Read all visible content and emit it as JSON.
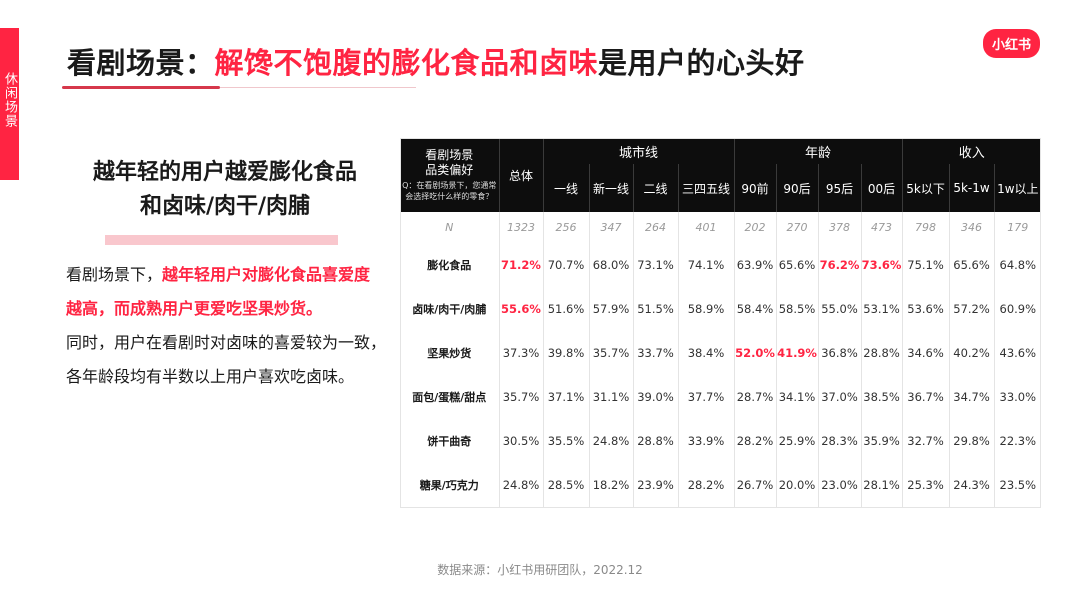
{
  "side_tab": "休闲场景",
  "title": {
    "prefix": "看剧场景：",
    "highlight": "解馋不饱腹的膨化食品和卤味",
    "suffix": "是用户的心头好"
  },
  "logo": "小红书",
  "subhead": {
    "line1": "越年轻的用户越爱膨化食品",
    "line2": "和卤味/肉干/肉脯"
  },
  "body": {
    "p1": "看剧场景下，",
    "p1_red": "越年轻用户对膨化食品喜爱度越高，而成熟用户更爱吃坚果炒货。",
    "p2": "同时，用户在看剧时对卤味的喜爱较为一致，各年龄段均有半数以上用户喜欢吃卤味。"
  },
  "table": {
    "corner_title": "看剧场景\n品类偏好",
    "corner_q": "Q：在看剧场景下，您通常会选择吃什么样的零食？",
    "total_label": "总体",
    "groups": [
      {
        "label": "城市线",
        "cols": [
          "一线",
          "新一线",
          "二线",
          "三四五线"
        ]
      },
      {
        "label": "年龄",
        "cols": [
          "90前",
          "90后",
          "95后",
          "00后"
        ]
      },
      {
        "label": "收入",
        "cols": [
          "5k以下",
          "5k-1w",
          "1w以上"
        ]
      }
    ],
    "n_row": {
      "label": "N",
      "values": [
        "1323",
        "256",
        "347",
        "264",
        "401",
        "202",
        "270",
        "378",
        "473",
        "798",
        "346",
        "179"
      ]
    },
    "rows": [
      {
        "label": "膨化食品",
        "values": [
          "71.2%",
          "70.7%",
          "68.0%",
          "73.1%",
          "74.1%",
          "63.9%",
          "65.6%",
          "76.2%",
          "73.6%",
          "75.1%",
          "65.6%",
          "64.8%"
        ],
        "hot": [
          0,
          7,
          8
        ]
      },
      {
        "label": "卤味/肉干/肉脯",
        "values": [
          "55.6%",
          "51.6%",
          "57.9%",
          "51.5%",
          "58.9%",
          "58.4%",
          "58.5%",
          "55.0%",
          "53.1%",
          "53.6%",
          "57.2%",
          "60.9%"
        ],
        "hot": [
          0
        ]
      },
      {
        "label": "坚果炒货",
        "values": [
          "37.3%",
          "39.8%",
          "35.7%",
          "33.7%",
          "38.4%",
          "52.0%",
          "41.9%",
          "36.8%",
          "28.8%",
          "34.6%",
          "40.2%",
          "43.6%"
        ],
        "hot": [
          5,
          6
        ]
      },
      {
        "label": "面包/蛋糕/甜点",
        "values": [
          "35.7%",
          "37.1%",
          "31.1%",
          "39.0%",
          "37.7%",
          "28.7%",
          "34.1%",
          "37.0%",
          "38.5%",
          "36.7%",
          "34.7%",
          "33.0%"
        ],
        "hot": []
      },
      {
        "label": "饼干曲奇",
        "values": [
          "30.5%",
          "35.5%",
          "24.8%",
          "28.8%",
          "33.9%",
          "28.2%",
          "25.9%",
          "28.3%",
          "35.9%",
          "32.7%",
          "29.8%",
          "22.3%"
        ],
        "hot": []
      },
      {
        "label": "糖果/巧克力",
        "values": [
          "24.8%",
          "28.5%",
          "18.2%",
          "23.9%",
          "28.2%",
          "26.7%",
          "20.0%",
          "23.0%",
          "28.1%",
          "25.3%",
          "24.3%",
          "23.5%"
        ],
        "hot": []
      }
    ]
  },
  "source": "数据来源：小红书用研团队，2022.12",
  "colors": {
    "accent": "#ff2442",
    "header_bg": "#0d0d0d"
  }
}
